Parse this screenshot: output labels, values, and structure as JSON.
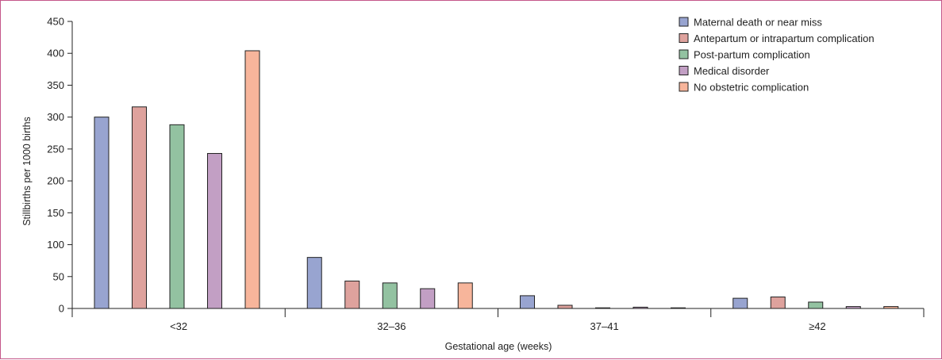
{
  "chart_data": {
    "type": "bar",
    "title": "",
    "xlabel": "Gestational age (weeks)",
    "ylabel": "Stillbirths per 1000 births",
    "ylim": [
      0,
      450
    ],
    "yticks": [
      0,
      50,
      100,
      150,
      200,
      250,
      300,
      350,
      400,
      450
    ],
    "categories": [
      "<32",
      "32–36",
      "37–41",
      "≥42"
    ],
    "legend_position": "top-right",
    "grid": false,
    "series": [
      {
        "name": "Maternal death or near miss",
        "color": "#98a4d0",
        "values": [
          300,
          80,
          20,
          16
        ]
      },
      {
        "name": "Antepartum or intrapartum complication",
        "color": "#dea29d",
        "values": [
          316,
          43,
          5,
          18
        ]
      },
      {
        "name": "Post-partum complication",
        "color": "#93c2a1",
        "values": [
          288,
          40,
          1,
          10
        ]
      },
      {
        "name": "Medical disorder",
        "color": "#c29fc4",
        "values": [
          243,
          31,
          2,
          3
        ]
      },
      {
        "name": "No obstetric complication",
        "color": "#f7b59b",
        "values": [
          404,
          40,
          1,
          3
        ]
      }
    ]
  }
}
